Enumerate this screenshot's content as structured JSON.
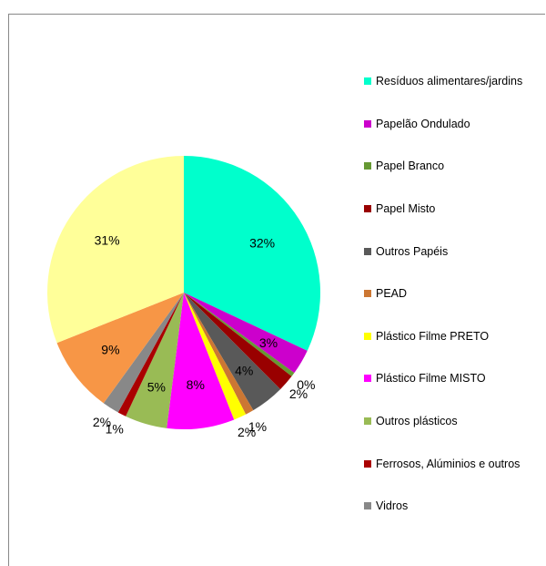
{
  "chart_data": {
    "type": "pie",
    "categories": [
      "Resíduos alimentares/jardins",
      "Papelão Ondulado",
      "Papel Branco",
      "Papel Misto",
      "Outros Papéis",
      "PEAD",
      "Plástico Filme PRETO",
      "Plástico Filme MISTO",
      "Outros plásticos",
      "Ferrosos, Alúminios e outros",
      "Vidros",
      ""
    ],
    "values": [
      32,
      3,
      0.5,
      2,
      4,
      1,
      1.5,
      8,
      5,
      1,
      2,
      31
    ],
    "labels": [
      "32%",
      "3%",
      "0%",
      "2%",
      "4%",
      "1%",
      "2%",
      "8%",
      "5%",
      "1%",
      "2%",
      "9%",
      "31%"
    ],
    "slice_labels": [
      "32%",
      "3%",
      "0%",
      "2%",
      "4%",
      "1%",
      "2%",
      "8%",
      "5%",
      "1%",
      "2%",
      "31%"
    ],
    "colors": [
      "#00FFCC",
      "#CC00CC",
      "#669933",
      "#990000",
      "#595959",
      "#CC7733",
      "#FFFF00",
      "#FF00FF",
      "#99BB55",
      "#AA0000",
      "#888888",
      "#FFFF99"
    ],
    "extra_slice": {
      "value": 9,
      "label": "9%",
      "color": "#F79646"
    },
    "legend": {
      "placement": "right",
      "entries": [
        "Resíduos alimentares/jardins",
        "Papelão Ondulado",
        "Papel Branco",
        "Papel Misto",
        "Outros Papéis",
        "PEAD",
        "Plástico Filme PRETO",
        "Plástico Filme MISTO",
        "Outros plásticos",
        "Ferrosos, Alúminios e outros",
        "Vidros"
      ]
    }
  }
}
